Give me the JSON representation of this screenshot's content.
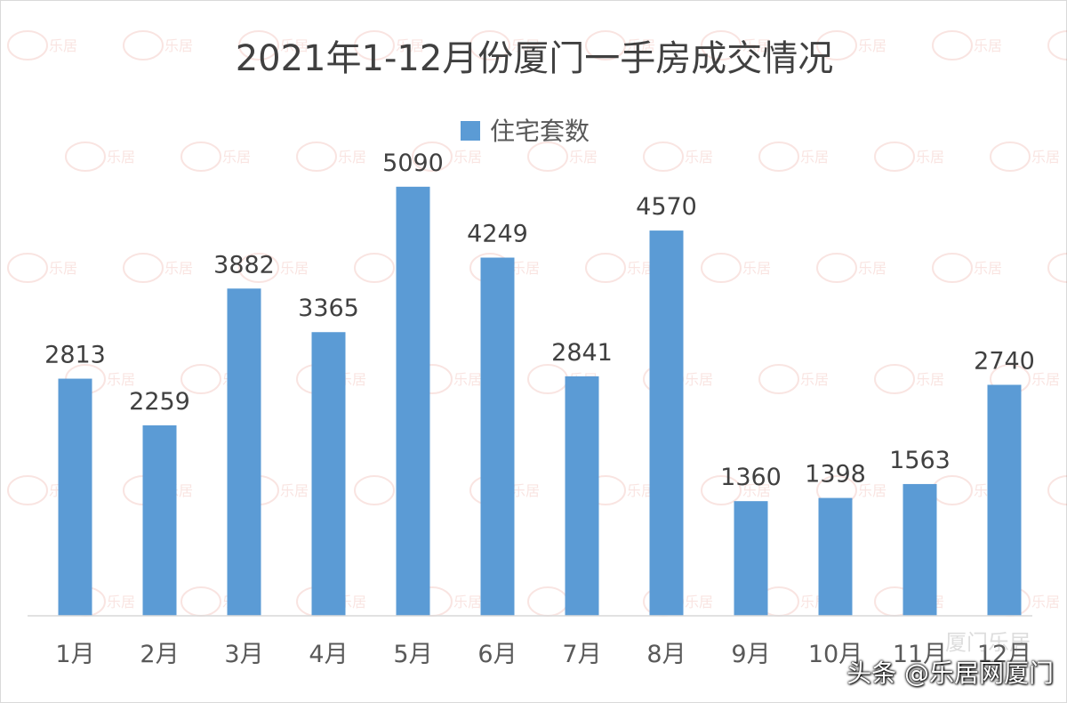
{
  "chart_data": {
    "type": "bar",
    "title": "2021年1-12月份厦门一手房成交情况",
    "categories": [
      "1月",
      "2月",
      "3月",
      "4月",
      "5月",
      "6月",
      "7月",
      "8月",
      "9月",
      "10月",
      "11月",
      "12月"
    ],
    "series": [
      {
        "name": "住宅套数",
        "values": [
          2813,
          2259,
          3882,
          3365,
          5090,
          4249,
          2841,
          4570,
          1360,
          1398,
          1563,
          2740
        ],
        "color": "#5b9bd5"
      }
    ],
    "xlabel": "",
    "ylabel": "",
    "ylim": [
      0,
      5500
    ],
    "grid": false,
    "legend": "top-center",
    "data_labels": true
  },
  "watermark": {
    "logo_text": "乐居",
    "caption": "头条 @乐居网厦门",
    "faint_text": "厦门乐居"
  }
}
